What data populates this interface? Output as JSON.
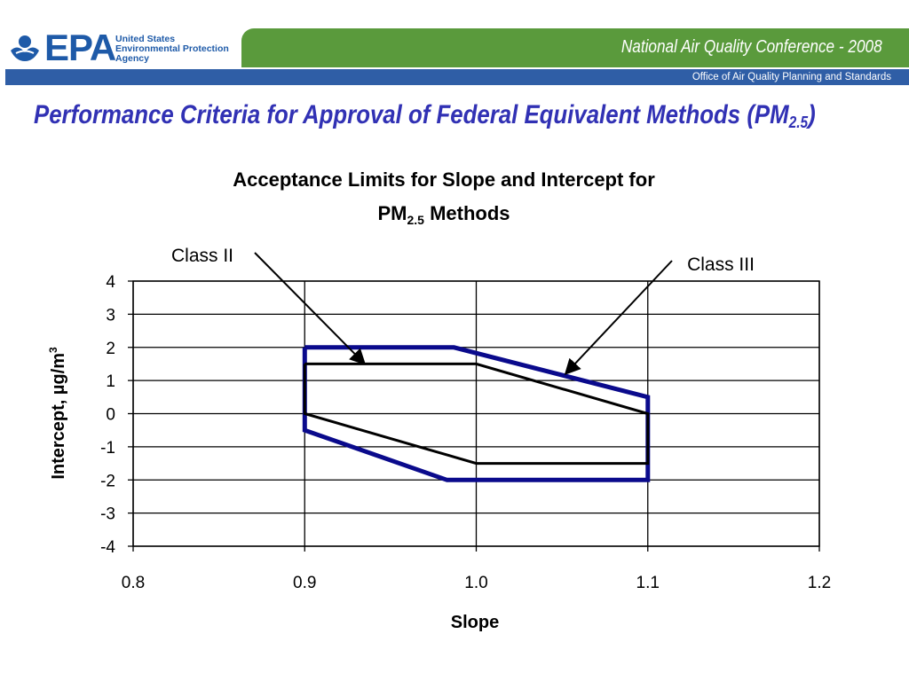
{
  "header": {
    "logo_text": "EPA",
    "agency_lines": [
      "United States",
      "Environmental Protection",
      "Agency"
    ],
    "conference": "National Air Quality Conference - 2008",
    "office": "Office of Air Quality Planning and Standards"
  },
  "slide": {
    "title_main": "Performance Criteria for Approval of Federal Equivalent Methods (PM",
    "title_sub": "2.5",
    "title_end": ")"
  },
  "colors": {
    "epa_blue": "#1e5aa8",
    "green_band": "#5a9a3c",
    "blue_band": "#2f5ea6",
    "title": "#3131b4",
    "class_iii": "#0a0a8c",
    "class_ii": "#000000"
  },
  "chart_data": {
    "type": "line",
    "title_line1": "Acceptance Limits for Slope and Intercept for",
    "title_line2_main": "PM",
    "title_line2_sub": "2.5",
    "title_line2_end": " Methods",
    "xlabel": "Slope",
    "ylabel": "Intercept, µg/m",
    "ylabel_sup": "3",
    "xlim": [
      0.8,
      1.2
    ],
    "ylim": [
      -4,
      4
    ],
    "x_ticks": [
      "0.8",
      "0.9",
      "1.0",
      "1.1",
      "1.2"
    ],
    "y_ticks": [
      "4",
      "3",
      "2",
      "1",
      "0",
      "-1",
      "-2",
      "-3",
      "-4"
    ],
    "grid": true,
    "series": [
      {
        "name": "Class III",
        "color": "#0a0a8c",
        "points": [
          [
            0.9,
            2.0
          ],
          [
            0.987,
            2.0
          ],
          [
            1.1,
            0.5
          ],
          [
            1.1,
            -2.0
          ],
          [
            0.983,
            -2.0
          ],
          [
            0.9,
            -0.5
          ],
          [
            0.9,
            2.0
          ]
        ]
      },
      {
        "name": "Class II",
        "color": "#000000",
        "points": [
          [
            0.9,
            1.5
          ],
          [
            1.0,
            1.5
          ],
          [
            1.1,
            0.0
          ],
          [
            1.1,
            -1.5
          ],
          [
            1.0,
            -1.5
          ],
          [
            0.9,
            0.0
          ],
          [
            0.9,
            1.5
          ]
        ]
      }
    ],
    "annotations": [
      {
        "label": "Class II",
        "target": [
          0.935,
          1.5
        ]
      },
      {
        "label": "Class III",
        "target": [
          1.052,
          1.2
        ]
      }
    ]
  }
}
